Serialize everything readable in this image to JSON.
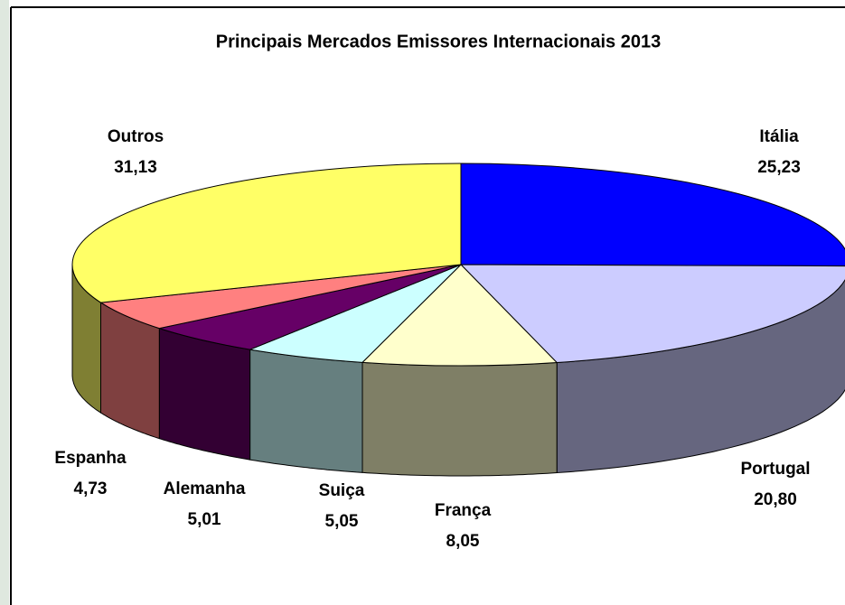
{
  "chart_data": {
    "type": "pie3d",
    "title": "Principais Mercados Emissores Internacionais 2013",
    "categories": [
      "Itália",
      "Portugal",
      "França",
      "Suiça",
      "Alemanha",
      "Espanha",
      "Outros"
    ],
    "values": [
      25.23,
      20.8,
      8.05,
      5.05,
      5.01,
      4.73,
      31.13
    ],
    "value_labels": [
      "25,23",
      "20,80",
      "8,05",
      "5,05",
      "5,01",
      "4,73",
      "31,13"
    ],
    "colors": [
      "#0000ff",
      "#ccccff",
      "#ffffcc",
      "#ccffff",
      "#660066",
      "#ff8080",
      "#ffff66"
    ]
  }
}
